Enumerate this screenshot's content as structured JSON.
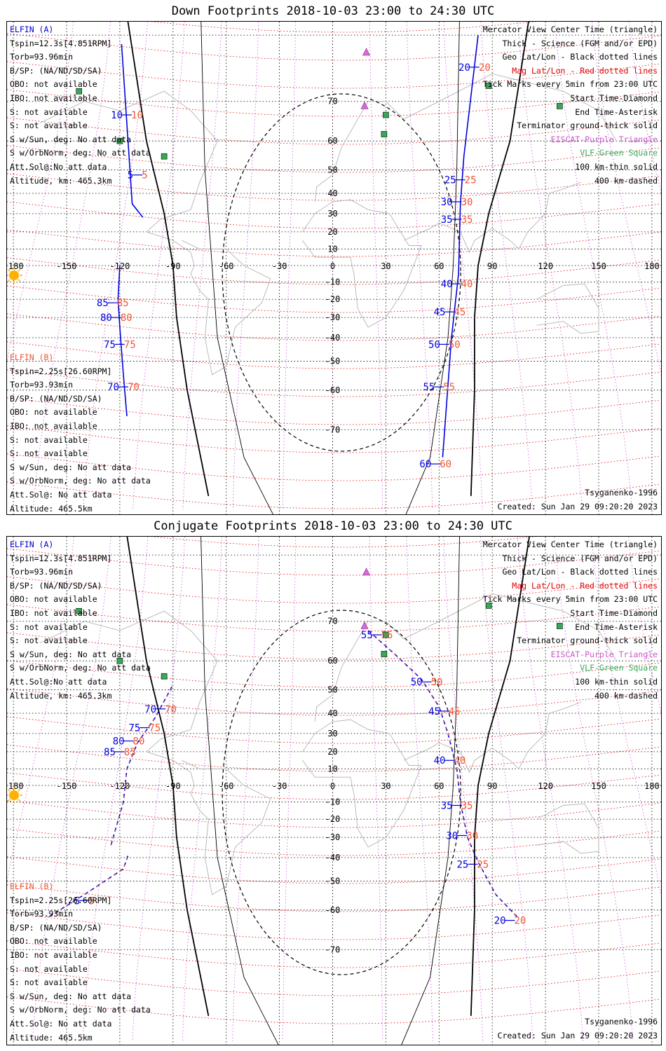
{
  "panels": [
    {
      "title": "Down Footprints 2018-10-03 23:00 to 24:30 UTC",
      "elfin_a": {
        "header": "ELFIN (A)",
        "lines": [
          "Tspin=12.3s[4.851RPM]",
          "Torb=93.96min",
          "B/SP: (NA/ND/SD/SA)",
          "OBO: not available",
          "IBO: not available",
          "S: not available",
          "S: not available",
          "S w/Sun, deg: No att data",
          "S w/OrbNorm, deg: No att data",
          "Att.Sol@:No att data",
          "Altitude, km: 465.3km"
        ]
      },
      "elfin_b": {
        "header": "ELFIN (B)",
        "lines": [
          "Tspin=2.25s[26.60RPM]",
          "Torb=93.93min",
          "B/SP: (NA/ND/SD/SA)",
          "OBO: not available",
          "IBO: not available",
          "S: not available",
          "S: not available",
          "S w/Sun, deg: No att data",
          "S w/OrbNorm, deg: No att data",
          "Att.Sol@: No att data",
          "Altitude: 465.5km"
        ]
      },
      "legend": {
        "center": "Mercator View Center Time (triangle)",
        "thick": "Thick - Science (FGM and/or EPD)",
        "geo": "Geo Lat/Lon - Black dotted lines",
        "mag": "Mag Lat/Lon - Red dotted lines",
        "ticks": "Tick Marks every 5min from 23:00 UTC",
        "start": "Start Time-Diamond",
        "end": "End Time-Asterisk",
        "term": "Terminator ground-thick solid",
        "eiscat": "EISCAT-Purple Triangle",
        "vlf": "VLF-Green Square",
        "km100": "100 km-thin solid",
        "km400": "400 km-dashed"
      },
      "model": "Tsyganenko-1996",
      "created": "Created: Sun Jan 29 09:20:20 2023",
      "lon_ticks": [
        "-180",
        "-150",
        "-120",
        "-90",
        "-60",
        "-30",
        "0",
        "30",
        "60",
        "90",
        "120",
        "150",
        "180"
      ],
      "lat_ticks": [
        "70",
        "60",
        "50",
        "40",
        "30",
        "20",
        "10",
        "-10",
        "-20",
        "-30",
        "-40",
        "-50",
        "-60",
        "-70"
      ]
    },
    {
      "title": "Conjugate Footprints 2018-10-03 23:00 to 24:30 UTC",
      "elfin_a": {
        "header": "ELFIN (A)",
        "lines": [
          "Tspin=12.3s[4.851RPM]",
          "Torb=93.96min",
          "B/SP: (NA/ND/SD/SA)",
          "OBO: not available",
          "IBO: not available",
          "S: not available",
          "S: not available",
          "S w/Sun, deg: No att data",
          "S w/OrbNorm, deg: No att data",
          "Att.Sol@:No att data",
          "Altitude, km: 465.3km"
        ]
      },
      "elfin_b": {
        "header": "ELFIN (B)",
        "lines": [
          "Tspin=2.25s[26.60RPM]",
          "Torb=93.93min",
          "B/SP: (NA/ND/SD/SA)",
          "OBO: not available",
          "IBO: not available",
          "S: not available",
          "S: not available",
          "S w/Sun, deg: No att data",
          "S w/OrbNorm, deg: No att data",
          "Att.Sol@: No att data",
          "Altitude: 465.5km"
        ]
      },
      "legend": {
        "center": "Mercator View Center Time (triangle)",
        "thick": "Thick - Science (FGM and/or EPD)",
        "geo": "Geo Lat/Lon - Black dotted lines",
        "mag": "Mag Lat/Lon - Red dotted lines",
        "ticks": "Tick Marks every 5min from 23:00 UTC",
        "start": "Start Time-Diamond",
        "end": "End Time-Asterisk",
        "term": "Terminator ground-thick solid",
        "eiscat": "EISCAT-Purple Triangle",
        "vlf": "VLF-Green Square",
        "km100": "100 km-thin solid",
        "km400": "400 km-dashed"
      },
      "model": "Tsyganenko-1996",
      "created": "Created: Sun Jan 29 09:20:20 2023",
      "lon_ticks": [
        "-180",
        "-150",
        "-120",
        "-90",
        "-60",
        "-30",
        "0",
        "30",
        "60",
        "90",
        "120",
        "150",
        "180"
      ],
      "lat_ticks": [
        "70",
        "60",
        "50",
        "40",
        "30",
        "20",
        "10",
        "-10",
        "-20",
        "-30",
        "-40",
        "-50",
        "-60",
        "-70"
      ]
    }
  ],
  "tracks": {
    "down": {
      "a_west": [
        [
          -120,
          0
        ],
        [
          -121,
          -20
        ],
        [
          -120,
          -35
        ],
        [
          -118,
          -55
        ],
        [
          -116,
          -67
        ]
      ],
      "a_west_top": [
        [
          -119,
          79
        ],
        [
          -113,
          35
        ],
        [
          -107,
          28
        ]
      ],
      "a_east": [
        [
          82,
          80
        ],
        [
          74,
          55
        ],
        [
          72,
          35
        ],
        [
          71,
          -5
        ],
        [
          67,
          -40
        ],
        [
          62,
          -75
        ]
      ],
      "a_west_ticks": [
        [
          "10",
          -116,
          67
        ],
        [
          "5",
          -110,
          48
        ],
        [
          "85",
          -124,
          -22
        ],
        [
          "80",
          -122,
          -30
        ],
        [
          "75",
          -120,
          -43
        ],
        [
          "70",
          -118,
          -59
        ]
      ],
      "a_east_ticks": [
        [
          "20",
          80,
          76
        ],
        [
          "25",
          72,
          46
        ],
        [
          "30",
          70,
          36
        ],
        [
          "35",
          70,
          27
        ],
        [
          "40",
          70,
          -11
        ],
        [
          "45",
          66,
          -27
        ],
        [
          "50",
          63,
          -43
        ],
        [
          "55",
          60,
          -59
        ],
        [
          "60",
          58,
          -76
        ]
      ]
    },
    "conj": {
      "a_west": [
        [
          -125,
          -34
        ],
        [
          -118,
          -10
        ],
        [
          -116,
          10
        ],
        [
          -110,
          25
        ],
        [
          -100,
          38
        ],
        [
          -90,
          52
        ]
      ],
      "a_west_b": [
        [
          -160,
          -62
        ],
        [
          -140,
          -55
        ],
        [
          -118,
          -45
        ],
        [
          -115,
          -38
        ]
      ],
      "a_east": [
        [
          20,
          68
        ],
        [
          35,
          62
        ],
        [
          50,
          54
        ],
        [
          60,
          43
        ],
        [
          65,
          30
        ],
        [
          70,
          10
        ],
        [
          72,
          -10
        ],
        [
          76,
          -30
        ],
        [
          82,
          -42
        ],
        [
          92,
          -55
        ],
        [
          104,
          -62
        ]
      ],
      "a_west_ticks": [
        [
          "70",
          -97,
          42
        ],
        [
          "75",
          -106,
          33
        ],
        [
          "80",
          -115,
          26
        ],
        [
          "85",
          -120,
          20
        ]
      ],
      "b_ticks": [
        [
          "5",
          -140,
          -57
        ]
      ],
      "a_east_ticks": [
        [
          "55",
          25,
          67
        ],
        [
          "50",
          53,
          53
        ],
        [
          "45",
          63,
          41
        ],
        [
          "40",
          66,
          15
        ],
        [
          "35",
          70,
          -12
        ],
        [
          "30",
          73,
          -29
        ],
        [
          "25",
          79,
          -43
        ],
        [
          "20",
          100,
          -63
        ]
      ]
    }
  },
  "stations": {
    "eiscat": [
      [
        19,
        78
      ],
      [
        18,
        69
      ]
    ],
    "vlf": [
      [
        -143,
        72
      ],
      [
        -120,
        60
      ],
      [
        -95,
        55
      ],
      [
        88,
        73
      ],
      [
        30,
        67
      ],
      [
        29,
        62
      ],
      [
        128,
        69
      ]
    ]
  }
}
